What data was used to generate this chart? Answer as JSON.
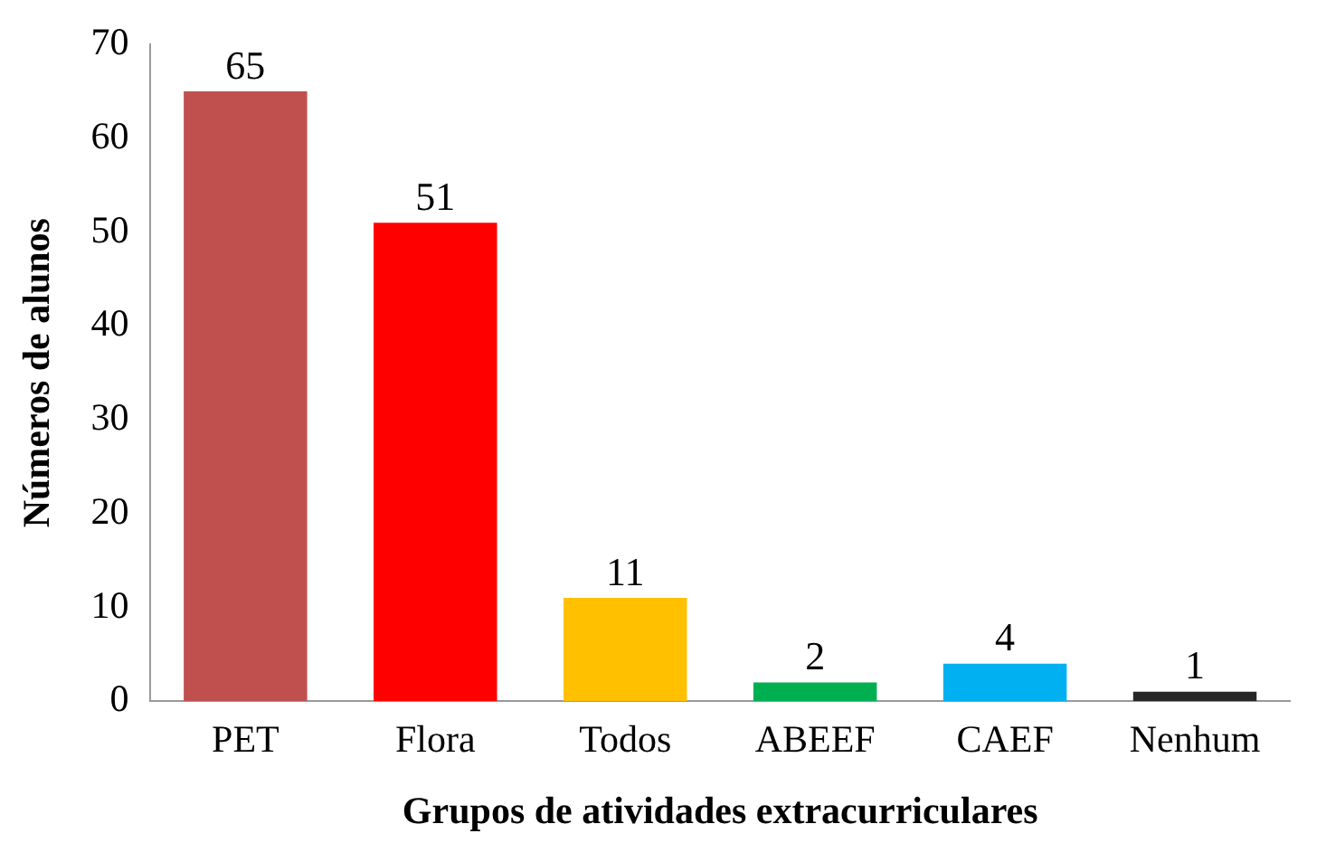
{
  "chart_data": {
    "type": "bar",
    "xlabel": "Grupos de atividades extracurriculares",
    "ylabel": "Números de alunos",
    "categories": [
      "PET",
      "Flora",
      "Todos",
      "ABEEF",
      "CAEF",
      "Nenhum"
    ],
    "values": [
      65,
      51,
      11,
      2,
      4,
      1
    ],
    "colors": [
      "#c0504d",
      "#ff0000",
      "#ffc000",
      "#00b050",
      "#00b0f0",
      "#262626"
    ],
    "ylim": [
      0,
      70
    ],
    "yticks": [
      0,
      10,
      20,
      30,
      40,
      50,
      60,
      70
    ],
    "grid": false,
    "legend": false,
    "data_labels": true
  }
}
